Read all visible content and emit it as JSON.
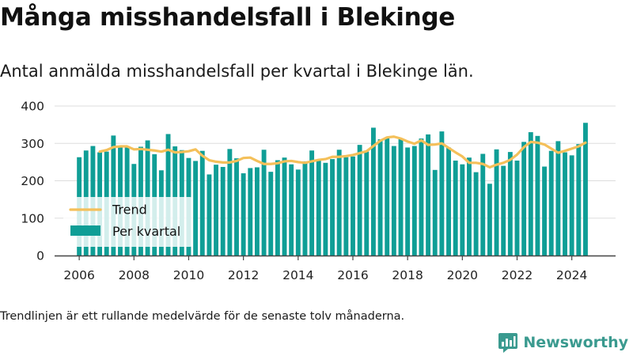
{
  "title": "Många misshandelsfall i Blekinge",
  "subtitle": "Antal anmälda misshandelsfall per kvartal i Blekinge län.",
  "footnote": "Trendlinjen är ett rullande medelvärde för de senaste tolv månaderna.",
  "brand": {
    "name": "Newsworthy",
    "icon": "newsworthy-logo-icon",
    "color": "#3a9a8f"
  },
  "colors": {
    "bars": "#0f9e96",
    "trend": "#f4c05a",
    "axis": "#333333",
    "grid": "#dddddd"
  },
  "chart_data": {
    "type": "bar",
    "title": "Många misshandelsfall i Blekinge",
    "subtitle": "Antal anmälda misshandelsfall per kvartal i Blekinge län.",
    "xlabel": "",
    "ylabel": "",
    "x_ticks": [
      2006,
      2008,
      2010,
      2012,
      2014,
      2016,
      2018,
      2020,
      2022,
      2024
    ],
    "y_ticks": [
      0,
      100,
      200,
      300,
      400
    ],
    "xlim": [
      2005.1,
      2025.6
    ],
    "ylim": [
      0,
      400
    ],
    "grid": "horizontal",
    "legend_position": "bottom-left",
    "series": [
      {
        "name": "Per kvartal",
        "kind": "bar",
        "start": 2006.0,
        "step": 0.25,
        "values": [
          263,
          281,
          293,
          276,
          278,
          321,
          289,
          291,
          245,
          291,
          308,
          271,
          228,
          325,
          292,
          282,
          261,
          253,
          280,
          217,
          243,
          237,
          285,
          260,
          220,
          234,
          236,
          283,
          224,
          255,
          262,
          244,
          230,
          252,
          281,
          256,
          248,
          258,
          283,
          263,
          265,
          296,
          278,
          342,
          311,
          314,
          293,
          313,
          289,
          293,
          313,
          324,
          229,
          332,
          289,
          254,
          244,
          262,
          223,
          272,
          192,
          284,
          240,
          277,
          254,
          304,
          330,
          320,
          238,
          280,
          306,
          276,
          268,
          298,
          355
        ]
      },
      {
        "name": "Trend",
        "kind": "line",
        "x": [
          2006.75,
          2007.0,
          2007.25,
          2007.5,
          2007.75,
          2008.0,
          2008.25,
          2008.5,
          2008.75,
          2009.0,
          2009.25,
          2009.5,
          2009.75,
          2010.0,
          2010.25,
          2010.5,
          2010.75,
          2011.0,
          2011.25,
          2011.5,
          2011.75,
          2012.0,
          2012.25,
          2012.5,
          2012.75,
          2013.0,
          2013.25,
          2013.5,
          2013.75,
          2014.0,
          2014.25,
          2014.5,
          2014.75,
          2015.0,
          2015.25,
          2015.5,
          2015.75,
          2016.0,
          2016.25,
          2016.5,
          2016.75,
          2017.0,
          2017.25,
          2017.5,
          2017.75,
          2018.0,
          2018.25,
          2018.5,
          2018.75,
          2019.0,
          2019.25,
          2019.5,
          2019.75,
          2020.0,
          2020.25,
          2020.5,
          2020.75,
          2021.0,
          2021.25,
          2021.5,
          2021.75,
          2022.0,
          2022.25,
          2022.5,
          2022.75,
          2023.0,
          2023.25,
          2023.5,
          2023.75,
          2024.0,
          2024.25,
          2024.5
        ],
        "values": [
          278,
          282,
          290,
          292,
          292,
          284,
          285,
          283,
          281,
          278,
          283,
          276,
          277,
          279,
          284,
          267,
          255,
          251,
          249,
          249,
          253,
          261,
          262,
          253,
          245,
          245,
          247,
          252,
          253,
          250,
          248,
          252,
          256,
          258,
          264,
          264,
          266,
          269,
          274,
          279,
          293,
          307,
          316,
          318,
          313,
          305,
          299,
          308,
          296,
          297,
          300,
          288,
          276,
          265,
          248,
          248,
          245,
          236,
          243,
          248,
          256,
          270,
          290,
          304,
          302,
          297,
          286,
          275,
          280,
          286,
          292,
          302
        ]
      }
    ]
  }
}
